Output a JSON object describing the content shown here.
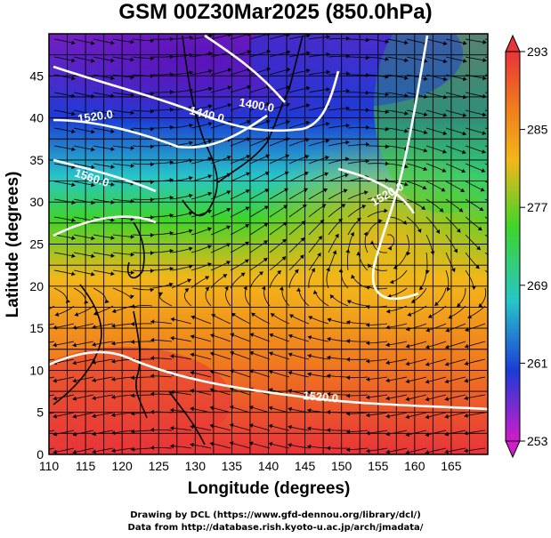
{
  "title": "GSM 00Z30Mar2025 (850.0hPa)",
  "xlabel": "Longitude (degrees)",
  "ylabel": "Latitude  (degrees)",
  "x_ticks": [
    "110",
    "115",
    "120",
    "125",
    "130",
    "135",
    "140",
    "145",
    "150",
    "155",
    "160",
    "165"
  ],
  "y_ticks": [
    "0",
    "5",
    "10",
    "15",
    "20",
    "25",
    "30",
    "35",
    "40",
    "45"
  ],
  "colorbar": {
    "labels": [
      "293",
      "285",
      "277",
      "269",
      "261",
      "253"
    ],
    "colors": {
      "high": "#e8333a",
      "warm": "#f07a1e",
      "mid": "#f2b71a",
      "green": "#3fd42b",
      "cyan": "#27c6c8",
      "blue": "#1c3bd6",
      "low": "#d21cc9"
    }
  },
  "contour_labels": [
    "1400.0",
    "1440.0",
    "1520.0",
    "1560.0",
    "1520.0",
    "1520.0"
  ],
  "credits": {
    "line1": "Drawing by DCL (https://www.gfd-dennou.org/library/dcl/)",
    "line2": "Data from http://database.rish.kyoto-u.ac.jp/arch/jmadata/"
  }
}
